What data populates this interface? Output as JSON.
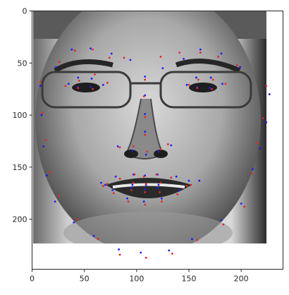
{
  "image": {
    "description_icon": "grayscale-face-photo",
    "background_color": "#ffffff"
  },
  "chart_data": {
    "type": "scatter",
    "title": "",
    "xlabel": "",
    "ylabel": "",
    "xlim": [
      0,
      240
    ],
    "ylim": [
      248,
      0
    ],
    "image_extent": {
      "width": 224,
      "height": 224
    },
    "xticks": [
      "0",
      "50",
      "100",
      "150",
      "200"
    ],
    "yticks": [
      "0",
      "50",
      "100",
      "150",
      "200"
    ],
    "series": [
      {
        "color": "#1a1aff",
        "marker": "dot",
        "points": [
          [
            8,
            72
          ],
          [
            9,
            100
          ],
          [
            11,
            130
          ],
          [
            14,
            158
          ],
          [
            22,
            183
          ],
          [
            40,
            203
          ],
          [
            59,
            216
          ],
          [
            83,
            229
          ],
          [
            104,
            232
          ],
          [
            131,
            230
          ],
          [
            153,
            219
          ],
          [
            181,
            201
          ],
          [
            200,
            185
          ],
          [
            211,
            152
          ],
          [
            218,
            132
          ],
          [
            224,
            107
          ],
          [
            227,
            80
          ],
          [
            23,
            54
          ],
          [
            38,
            37
          ],
          [
            56,
            36
          ],
          [
            76,
            41
          ],
          [
            94,
            47
          ],
          [
            125,
            55
          ],
          [
            145,
            46
          ],
          [
            161,
            37
          ],
          [
            181,
            41
          ],
          [
            199,
            54
          ],
          [
            108,
            63
          ],
          [
            108,
            81
          ],
          [
            108,
            99
          ],
          [
            108,
            116
          ],
          [
            82,
            130
          ],
          [
            96,
            134
          ],
          [
            109,
            138
          ],
          [
            121,
            135
          ],
          [
            133,
            129
          ],
          [
            35,
            70
          ],
          [
            44,
            64
          ],
          [
            57,
            65
          ],
          [
            68,
            71
          ],
          [
            56,
            73
          ],
          [
            44,
            73
          ],
          [
            148,
            71
          ],
          [
            157,
            64
          ],
          [
            171,
            64
          ],
          [
            182,
            70
          ],
          [
            170,
            74
          ],
          [
            158,
            73
          ],
          [
            66,
            165
          ],
          [
            80,
            159
          ],
          [
            97,
            157
          ],
          [
            108,
            158
          ],
          [
            120,
            157
          ],
          [
            138,
            159
          ],
          [
            160,
            163
          ],
          [
            141,
            172
          ],
          [
            124,
            180
          ],
          [
            107,
            183
          ],
          [
            91,
            180
          ],
          [
            77,
            172
          ],
          [
            70,
            167
          ],
          [
            96,
            167
          ],
          [
            109,
            167
          ],
          [
            121,
            167
          ],
          [
            150,
            163
          ],
          [
            120,
            170
          ],
          [
            108,
            171
          ],
          [
            95,
            170
          ]
        ]
      },
      {
        "color": "#e8242a",
        "marker": "dot",
        "points": [
          [
            8,
            68
          ],
          [
            10,
            98
          ],
          [
            13,
            124
          ],
          [
            17,
            155
          ],
          [
            26,
            178
          ],
          [
            43,
            200
          ],
          [
            63,
            219
          ],
          [
            84,
            234
          ],
          [
            109,
            237
          ],
          [
            134,
            233
          ],
          [
            158,
            220
          ],
          [
            183,
            205
          ],
          [
            203,
            188
          ],
          [
            210,
            156
          ],
          [
            215,
            127
          ],
          [
            221,
            103
          ],
          [
            224,
            72
          ],
          [
            26,
            49
          ],
          [
            41,
            38
          ],
          [
            58,
            37
          ],
          [
            74,
            45
          ],
          [
            88,
            45
          ],
          [
            123,
            44
          ],
          [
            141,
            40
          ],
          [
            161,
            40
          ],
          [
            178,
            44
          ],
          [
            196,
            52
          ],
          [
            108,
            66
          ],
          [
            107,
            82
          ],
          [
            108,
            102
          ],
          [
            108,
            119
          ],
          [
            84,
            131
          ],
          [
            97,
            130
          ],
          [
            110,
            135
          ],
          [
            123,
            133
          ],
          [
            130,
            128
          ],
          [
            32,
            72
          ],
          [
            45,
            67
          ],
          [
            60,
            61
          ],
          [
            72,
            69
          ],
          [
            58,
            75
          ],
          [
            44,
            74
          ],
          [
            150,
            71
          ],
          [
            159,
            66
          ],
          [
            173,
            66
          ],
          [
            185,
            70
          ],
          [
            172,
            75
          ],
          [
            158,
            74
          ],
          [
            68,
            168
          ],
          [
            84,
            161
          ],
          [
            98,
            157
          ],
          [
            107,
            159
          ],
          [
            119,
            157
          ],
          [
            133,
            160
          ],
          [
            152,
            167
          ],
          [
            139,
            176
          ],
          [
            124,
            183
          ],
          [
            108,
            186
          ],
          [
            92,
            183
          ],
          [
            78,
            175
          ],
          [
            72,
            166
          ],
          [
            97,
            165
          ],
          [
            109,
            166
          ],
          [
            123,
            165
          ],
          [
            148,
            168
          ],
          [
            122,
            174
          ],
          [
            108,
            174
          ],
          [
            95,
            172
          ]
        ]
      }
    ]
  }
}
